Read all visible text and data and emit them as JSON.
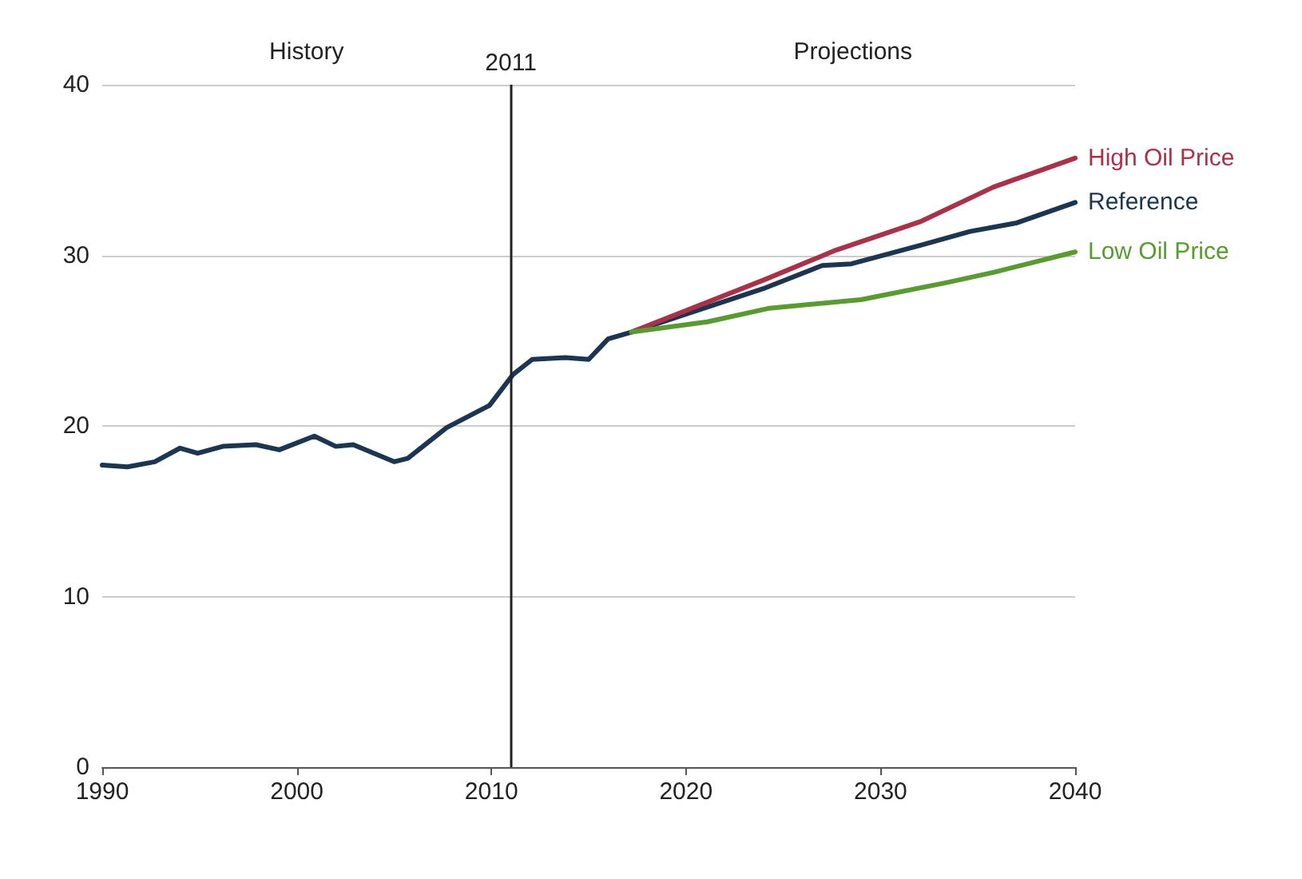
{
  "chart_data": {
    "type": "line",
    "xlim": [
      1990,
      2040
    ],
    "xticks": [
      1990,
      2000,
      2010,
      2020,
      2030,
      2040
    ],
    "ylim": [
      0,
      40
    ],
    "yticks": [
      0,
      10,
      20,
      30,
      40
    ],
    "grid": "y",
    "legend": false,
    "marker": "none",
    "line_style": "solid",
    "series": [
      {
        "name": "Reference",
        "color": "#1c3550",
        "x": [
          1990,
          1991.3,
          1992.7,
          1994,
          1994.9,
          1996.2,
          1997.9,
          1999.1,
          2000.9,
          2002,
          2002.9,
          2005,
          2005.7,
          2007.7,
          2009.9,
          2011.1,
          2012.1,
          2013.8,
          2015,
          2016,
          2017.2,
          2024.1,
          2027,
          2028.5,
          2032.1,
          2034.6,
          2037,
          2040
        ],
        "values": [
          17.7,
          17.6,
          17.9,
          18.7,
          18.4,
          18.8,
          18.9,
          18.6,
          19.4,
          18.8,
          18.9,
          17.9,
          18.1,
          19.9,
          21.2,
          23,
          23.9,
          24,
          23.9,
          25.1,
          25.5,
          28.1,
          29.4,
          29.5,
          30.6,
          31.4,
          31.9,
          33.1
        ]
      },
      {
        "name": "High Oil Price",
        "color": "#a8324a",
        "x": [
          2017.2,
          2024.1,
          2027.7,
          2032.1,
          2035.8,
          2040
        ],
        "values": [
          25.5,
          28.6,
          30.3,
          32,
          34,
          35.7
        ]
      },
      {
        "name": "Low Oil Price",
        "color": "#5a9a32",
        "x": [
          2017.2,
          2021.1,
          2024.3,
          2029,
          2033.4,
          2035.8,
          2040
        ],
        "values": [
          25.5,
          26.1,
          26.9,
          27.4,
          28.4,
          29,
          30.2
        ]
      }
    ],
    "ref_lines": [
      {
        "axis": "x",
        "value": 2011,
        "label": "2011",
        "color": "#222222"
      }
    ],
    "annotations": [
      "History",
      "Projections"
    ]
  }
}
